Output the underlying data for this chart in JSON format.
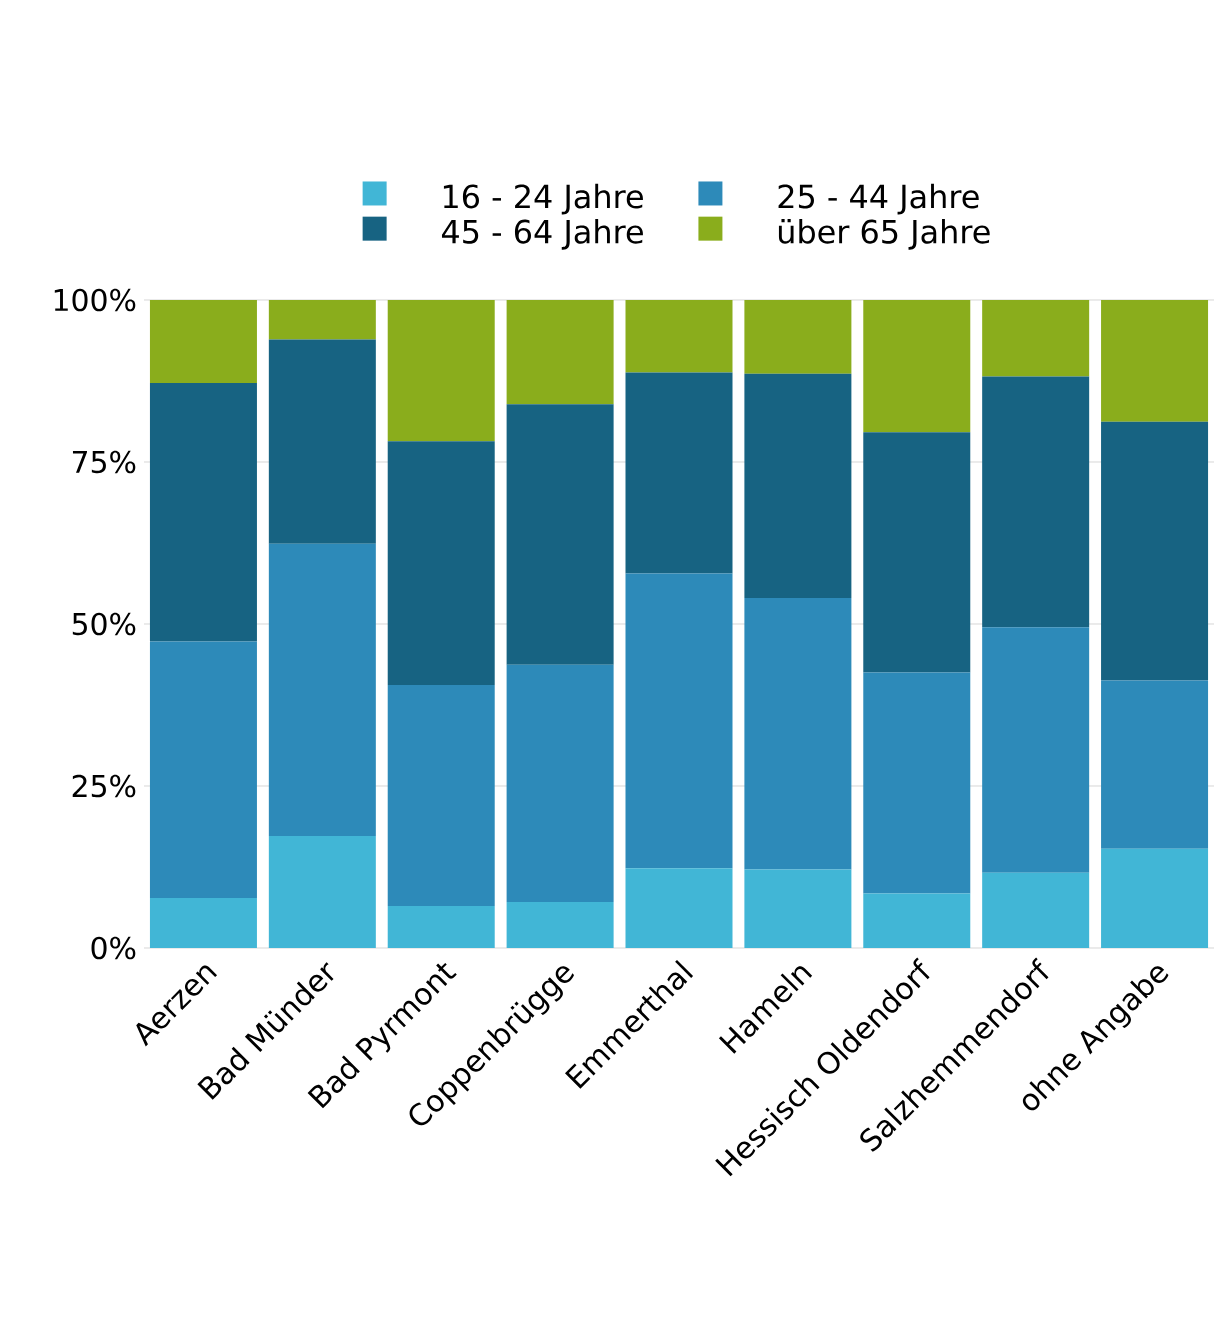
{
  "chart_data": {
    "type": "bar",
    "stacked": true,
    "categories": [
      "Aerzen",
      "Bad Münder",
      "Bad Pyrmont",
      "Coppenbrügge",
      "Emmerthal",
      "Hameln",
      "Hessisch Oldendorf",
      "Salzhemmendorf",
      "ohne Angabe"
    ],
    "series": [
      {
        "name": "16 - 24 Jahre",
        "color": "#41b6d6",
        "values": [
          7.7,
          17.3,
          6.5,
          7.1,
          12.3,
          12.1,
          8.4,
          11.6,
          15.3
        ]
      },
      {
        "name": "25 - 44 Jahre",
        "color": "#2d8ab9",
        "values": [
          39.6,
          45.1,
          34.1,
          36.6,
          45.5,
          41.9,
          34.1,
          37.9,
          26.0
        ]
      },
      {
        "name": "45 - 64 Jahre",
        "color": "#176382",
        "values": [
          39.9,
          31.5,
          37.6,
          40.2,
          31.0,
          34.6,
          37.1,
          38.7,
          39.9
        ]
      },
      {
        "name": "über 65 Jahre",
        "color": "#8aad1c",
        "values": [
          12.8,
          6.1,
          21.8,
          16.1,
          11.2,
          11.4,
          20.4,
          11.8,
          18.8
        ]
      }
    ],
    "ylim": [
      0,
      100
    ],
    "yticks": [
      {
        "value": 0,
        "label": "0%"
      },
      {
        "value": 25,
        "label": "25%"
      },
      {
        "value": 50,
        "label": "50%"
      },
      {
        "value": 75,
        "label": "75%"
      },
      {
        "value": 100,
        "label": "100%"
      }
    ],
    "grid": "y",
    "legend": "top"
  }
}
